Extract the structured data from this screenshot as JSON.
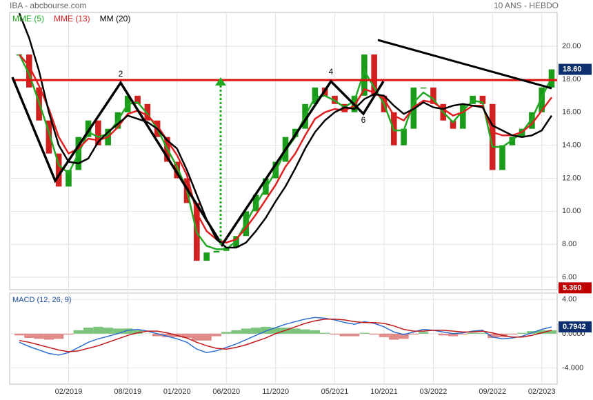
{
  "header": {
    "title": "IBA - abcbourse.com",
    "period": "10 ANS - HEBDO"
  },
  "annotations": [
    "2",
    "4",
    "6"
  ],
  "chart_data": [
    {
      "type": "candlestick",
      "up_color": "#1a9b1a",
      "down_color": "#d02020",
      "categories": [
        null,
        null,
        null,
        null,
        null,
        "02/2019",
        null,
        null,
        null,
        null,
        null,
        "08/2019",
        null,
        null,
        null,
        null,
        "01/2020",
        null,
        null,
        null,
        null,
        "06/2020",
        null,
        null,
        null,
        null,
        "11/2020",
        null,
        null,
        null,
        null,
        null,
        "05/2021",
        null,
        null,
        null,
        null,
        "10/2021",
        null,
        null,
        null,
        null,
        "03/2022",
        null,
        null,
        null,
        null,
        null,
        "09/2022",
        null,
        null,
        null,
        null,
        "02/2023",
        null
      ],
      "values": [
        19.5,
        17.5,
        15.5,
        13.5,
        11.5,
        12.5,
        14.5,
        15.5,
        14.0,
        15.0,
        16.0,
        17.0,
        16.5,
        15.5,
        14.5,
        13.0,
        12.0,
        10.5,
        7.0,
        7.5,
        7.6,
        7.8,
        8.5,
        10.0,
        11.0,
        12.0,
        13.0,
        14.5,
        15.0,
        16.5,
        17.5,
        17.0,
        16.5,
        16.0,
        17.0,
        19.5,
        17.0,
        16.0,
        14.0,
        15.0,
        17.5,
        17.5,
        16.5,
        15.5,
        15.0,
        16.5,
        17.0,
        16.5,
        12.5,
        14.0,
        14.5,
        15.0,
        16.0,
        17.5,
        18.6
      ],
      "series": [
        {
          "name": "MME (5)",
          "color": "#22a822",
          "values": [
            19.5,
            18.3,
            16.6,
            14.8,
            12.8,
            12.3,
            13.5,
            14.8,
            14.5,
            14.7,
            15.5,
            16.5,
            16.6,
            15.9,
            15.0,
            13.8,
            12.7,
            11.3,
            8.7,
            7.9,
            7.7,
            7.7,
            8.2,
            9.3,
            10.4,
            11.4,
            12.4,
            13.7,
            14.5,
            15.8,
            16.9,
            17.0,
            16.7,
            16.3,
            16.7,
            18.5,
            17.5,
            16.5,
            14.9,
            14.9,
            16.6,
            17.2,
            16.8,
            16.0,
            15.4,
            16.1,
            16.7,
            16.6,
            13.9,
            13.9,
            14.3,
            14.8,
            15.6,
            16.9,
            18.1
          ]
        },
        {
          "name": "MME (13)",
          "color": "#e02020",
          "values": [
            19.5,
            18.8,
            17.6,
            16.2,
            14.5,
            13.5,
            13.8,
            14.4,
            14.3,
            14.5,
            15.1,
            15.9,
            16.1,
            15.8,
            15.2,
            14.3,
            13.4,
            12.2,
            9.9,
            8.8,
            8.3,
            8.1,
            8.3,
            9.0,
            9.8,
            10.7,
            11.6,
            12.7,
            13.5,
            14.6,
            15.6,
            16.0,
            16.2,
            16.1,
            16.4,
            17.4,
            17.2,
            16.8,
            15.8,
            15.5,
            16.3,
            16.7,
            16.6,
            16.2,
            15.8,
            16.0,
            16.4,
            16.4,
            14.8,
            14.6,
            14.6,
            14.8,
            15.3,
            16.1,
            16.9
          ]
        },
        {
          "name": "MM (20)",
          "color": "#000000",
          "values": [
            22.0,
            20.5,
            18.5,
            16.0,
            14.0,
            13.0,
            12.9,
            13.2,
            14.2,
            14.8,
            15.3,
            15.8,
            15.6,
            15.4,
            15.0,
            14.3,
            13.8,
            12.5,
            11.0,
            9.5,
            8.3,
            7.8,
            7.8,
            8.1,
            8.8,
            9.6,
            10.6,
            11.5,
            12.6,
            13.8,
            14.8,
            15.5,
            16.0,
            16.3,
            16.2,
            16.8,
            17.1,
            17.0,
            16.4,
            15.9,
            16.2,
            16.6,
            16.3,
            16.2,
            16.4,
            16.5,
            16.4,
            16.3,
            15.2,
            14.9,
            14.6,
            14.5,
            14.6,
            14.9,
            15.8
          ]
        }
      ],
      "resistance": {
        "value": 17.95,
        "color": "#e01010"
      },
      "badges": [
        {
          "value": 18.6,
          "label": "18.60",
          "color": "#0d2f6e"
        },
        {
          "value": 5.36,
          "label": "5.360",
          "color": "#c00000"
        }
      ],
      "ylim": [
        5.25,
        22.05
      ],
      "yticks": [
        {
          "value": 6,
          "label": "6.00"
        },
        {
          "value": 8,
          "label": "8.00"
        },
        {
          "value": 10,
          "label": "10.00"
        },
        {
          "value": 12,
          "label": "12.00"
        },
        {
          "value": 14,
          "label": "14.00"
        },
        {
          "value": 16,
          "label": "16.00"
        },
        {
          "value": 18,
          "label": "18.00"
        },
        {
          "value": 20,
          "label": "20.00"
        }
      ],
      "grid": true
    },
    {
      "type": "line",
      "title": "MACD (12, 26, 9)",
      "series": [
        {
          "color": "#2e6fd0",
          "values": [
            -1.0,
            -1.5,
            -1.9,
            -2.3,
            -2.5,
            -2.2,
            -1.6,
            -1.0,
            -0.6,
            -0.3,
            0.0,
            0.4,
            0.5,
            0.3,
            0.0,
            -0.3,
            -0.6,
            -1.0,
            -1.8,
            -2.2,
            -2.0,
            -1.6,
            -1.2,
            -0.7,
            -0.2,
            0.3,
            0.7,
            1.1,
            1.4,
            1.7,
            1.9,
            1.8,
            1.6,
            1.3,
            1.1,
            1.4,
            1.2,
            0.8,
            0.2,
            -0.1,
            0.2,
            0.5,
            0.4,
            0.2,
            0.0,
            0.1,
            0.3,
            0.4,
            -0.4,
            -0.6,
            -0.5,
            -0.3,
            0.1,
            0.5,
            0.79
          ]
        },
        {
          "color": "#c01818",
          "values": [
            -0.8,
            -1.0,
            -1.3,
            -1.6,
            -1.9,
            -2.1,
            -2.0,
            -1.7,
            -1.4,
            -1.0,
            -0.6,
            -0.2,
            0.1,
            0.3,
            0.3,
            0.1,
            -0.2,
            -0.5,
            -1.0,
            -1.4,
            -1.7,
            -1.8,
            -1.6,
            -1.3,
            -0.9,
            -0.5,
            0.0,
            0.4,
            0.8,
            1.2,
            1.5,
            1.7,
            1.7,
            1.6,
            1.4,
            1.3,
            1.3,
            1.2,
            0.9,
            0.5,
            0.3,
            0.3,
            0.4,
            0.4,
            0.3,
            0.2,
            0.2,
            0.3,
            0.1,
            -0.2,
            -0.4,
            -0.4,
            -0.2,
            0.1,
            0.4
          ]
        }
      ],
      "histogram": {
        "up_color": "#7cc47c",
        "down_color": "#e08a8a",
        "values": [
          -0.2,
          -0.5,
          -0.6,
          -0.7,
          -0.6,
          -0.1,
          0.4,
          0.7,
          0.8,
          0.7,
          0.6,
          0.6,
          0.4,
          0.0,
          -0.3,
          -0.4,
          -0.4,
          -0.5,
          -0.8,
          -0.8,
          -0.3,
          0.2,
          0.4,
          0.6,
          0.7,
          0.8,
          0.7,
          0.7,
          0.6,
          0.5,
          0.4,
          0.1,
          -0.1,
          -0.3,
          -0.3,
          0.1,
          -0.1,
          -0.4,
          -0.7,
          -0.6,
          -0.1,
          0.2,
          0.0,
          -0.2,
          -0.3,
          -0.1,
          0.1,
          0.1,
          -0.5,
          -0.4,
          -0.1,
          0.1,
          0.3,
          0.4,
          0.39
        ]
      },
      "badges": [
        {
          "value": 0.7942,
          "label": "0.7942",
          "color": "#0d2f6e"
        }
      ],
      "ylim": [
        -5.88,
        4.73
      ],
      "yticks": [
        {
          "value": 4,
          "label": "4.00"
        },
        {
          "value": 0,
          "label": "0.0000"
        },
        {
          "value": -4,
          "label": "-4.000"
        }
      ],
      "grid": true
    }
  ]
}
